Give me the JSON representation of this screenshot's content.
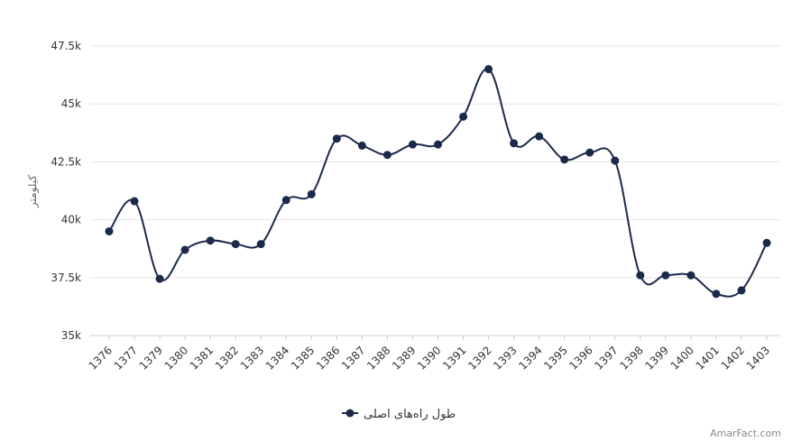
{
  "chart_data": {
    "type": "line",
    "ylabel": "کیلومتر",
    "ylim": [
      35000,
      47500
    ],
    "yticks": [
      35000,
      37500,
      40000,
      42500,
      45000,
      47500
    ],
    "ytick_labels": [
      "35k",
      "37.5k",
      "40k",
      "42.5k",
      "45k",
      "47.5k"
    ],
    "categories": [
      "1376",
      "1377",
      "1379",
      "1380",
      "1381",
      "1382",
      "1383",
      "1384",
      "1385",
      "1386",
      "1387",
      "1388",
      "1389",
      "1390",
      "1391",
      "1392",
      "1393",
      "1394",
      "1395",
      "1396",
      "1397",
      "1398",
      "1399",
      "1400",
      "1401",
      "1402",
      "1403"
    ],
    "series": [
      {
        "name": "طول راه‌های اصلی",
        "color": "#1b2a4a",
        "values": [
          39500,
          40800,
          37450,
          38700,
          39100,
          38950,
          38950,
          40850,
          41100,
          43500,
          43200,
          42800,
          43250,
          43250,
          44450,
          46500,
          43300,
          43600,
          42600,
          42900,
          42550,
          37600,
          37600,
          37600,
          36800,
          36950,
          39000
        ]
      }
    ],
    "grid": "horizontal",
    "legend": "bottom-center"
  },
  "credit": "AmarFact.com"
}
